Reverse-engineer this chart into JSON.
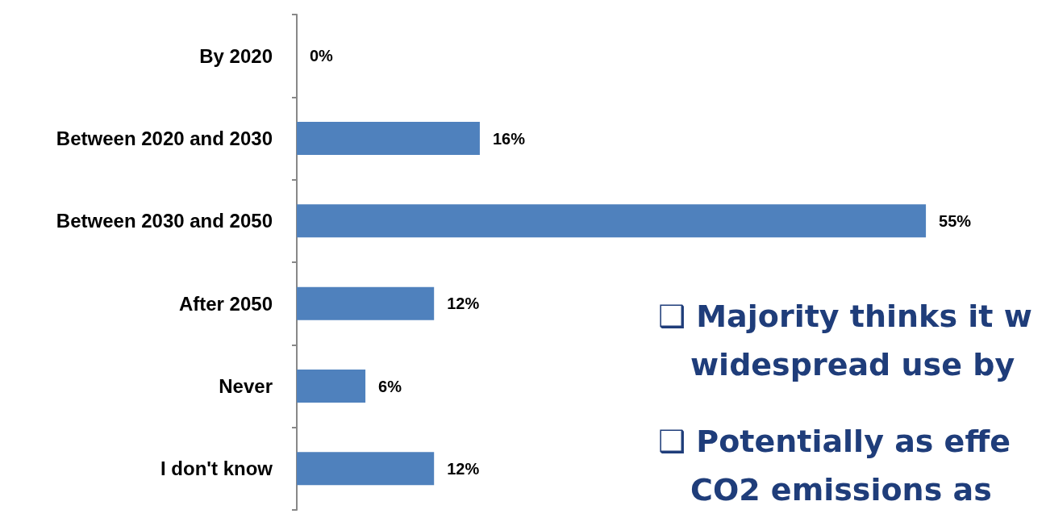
{
  "chart_data": {
    "type": "bar",
    "orientation": "horizontal",
    "categories": [
      "By 2020",
      "Between 2020 and 2030",
      "Between 2030 and 2050",
      "After 2050",
      "Never",
      "I don't know"
    ],
    "values": [
      0,
      16,
      55,
      12,
      6,
      12
    ],
    "value_labels": [
      "0%",
      "16%",
      "55%",
      "12%",
      "6%",
      "12%"
    ],
    "color": "#4f81bd",
    "grid": false,
    "tick_labels": "y",
    "annotations": [
      "❑ Majority thinks it w",
      "widespread use by",
      "❑ Potentially as effe",
      "CO2 emissions as"
    ]
  }
}
